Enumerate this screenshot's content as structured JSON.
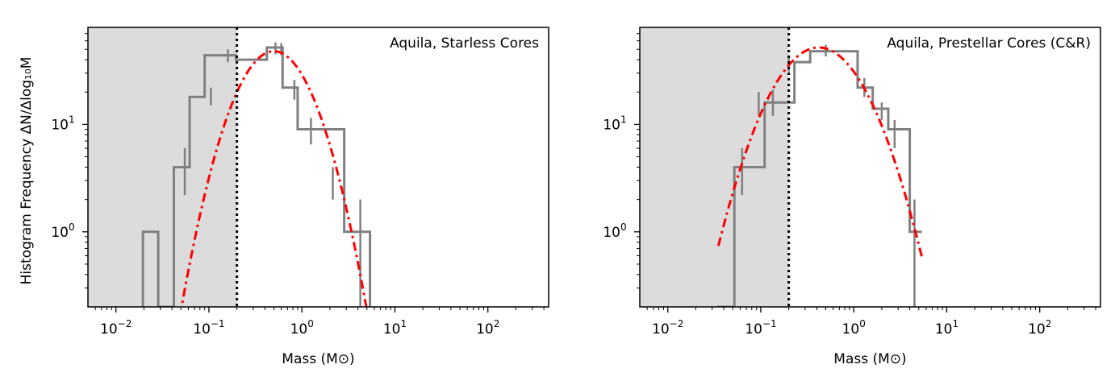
{
  "figure": {
    "ylabel": "Histogram Frequency ΔN/Δlog₁₀M"
  },
  "chart_data": [
    {
      "type": "histogram",
      "title": "",
      "annotation": "Aquila, Starless Cores",
      "xlabel": "Mass (M⊙)",
      "ylabel": "Histogram Frequency ΔN/Δlog₁₀M",
      "xscale": "log",
      "yscale": "log",
      "xlim": [
        0.005,
        450
      ],
      "ylim": [
        0.2,
        80
      ],
      "xticks": [
        0.01,
        0.1,
        1,
        10,
        100
      ],
      "xtick_labels": [
        {
          "base": "10",
          "exp": "−2"
        },
        {
          "base": "10",
          "exp": "−1"
        },
        {
          "base": "10",
          "exp": "0"
        },
        {
          "base": "10",
          "exp": "1"
        },
        {
          "base": "10",
          "exp": "2"
        }
      ],
      "yticks": [
        1,
        10
      ],
      "ytick_labels": [
        {
          "base": "10",
          "exp": "0"
        },
        {
          "base": "10",
          "exp": "1"
        }
      ],
      "completeness_limit": 0.2,
      "shaded_region": [
        0.005,
        0.2
      ],
      "histogram": {
        "color": "#808080",
        "bins": [
          {
            "x0": 0.0195,
            "x1": 0.0285,
            "count": 1.0,
            "err": [
              0.2,
              1.0
            ]
          },
          {
            "x0": 0.0285,
            "x1": 0.042,
            "count": 0.2,
            "err": null
          },
          {
            "x0": 0.042,
            "x1": 0.062,
            "count": 4.0,
            "err": [
              2.0,
              6.0
            ]
          },
          {
            "x0": 0.062,
            "x1": 0.09,
            "count": 18.0,
            "err": [
              13.5,
              22.5
            ]
          },
          {
            "x0": 0.09,
            "x1": 0.132,
            "count": 44.0,
            "err": [
              37.0,
              51.0
            ]
          },
          {
            "x0": 0.132,
            "x1": 0.195,
            "count": 42.0,
            "err": [
              35.0,
              49.0
            ]
          },
          {
            "x0": 0.195,
            "x1": 0.285,
            "count": 38.0,
            "err": [
              32.0,
              44.0
            ]
          },
          {
            "x0": 0.285,
            "x1": 0.42,
            "count": 44.0,
            "err": [
              37.5,
              50.5
            ]
          },
          {
            "x0": 0.42,
            "x1": 0.62,
            "count": 52.0,
            "err": [
              45.0,
              59.0
            ]
          },
          {
            "x0": 0.62,
            "x1": 0.9,
            "count": 22.0,
            "err": [
              17.0,
              27.0
            ]
          },
          {
            "x0": 0.9,
            "x1": 1.32,
            "count": 9.0,
            "err": [
              6.0,
              12.0
            ]
          },
          {
            "x0": 1.32,
            "x1": 1.95,
            "count": 3.0,
            "err": [
              1.3,
              4.7
            ]
          },
          {
            "x0": 1.95,
            "x1": 2.85,
            "count": 1.0,
            "err": [
              0.2,
              2.0
            ]
          },
          {
            "x0": 2.85,
            "x1": 5.4,
            "count": 1.0,
            "err": [
              0.2,
              2.0
            ]
          }
        ],
        "outline_x": [
          0.0195,
          0.0285,
          0.042,
          0.062,
          0.09,
          0.195,
          0.42,
          0.62,
          0.9,
          1.55,
          2.85,
          4.05,
          5.4
        ],
        "outline_y": [
          1.0,
          0.2,
          4.0,
          18.0,
          44.0,
          40.0,
          52.0,
          22.0,
          9.0,
          9.0,
          1.0,
          1.0
        ],
        "errorbars": [
          {
            "x": 0.0285,
            "lo": 0.2,
            "hi": 1.0
          },
          {
            "x": 0.055,
            "lo": 2.2,
            "hi": 6.0
          },
          {
            "x": 0.105,
            "lo": 15.0,
            "hi": 22.0
          },
          {
            "x": 0.16,
            "lo": 38.0,
            "hi": 50.0
          },
          {
            "x": 0.52,
            "lo": 45.0,
            "hi": 58.0
          },
          {
            "x": 0.6,
            "lo": 44.0,
            "hi": 57.0
          },
          {
            "x": 0.83,
            "lo": 17.0,
            "hi": 26.0
          },
          {
            "x": 1.25,
            "lo": 6.5,
            "hi": 11.5
          },
          {
            "x": 2.15,
            "lo": 2.0,
            "hi": 4.0
          },
          {
            "x": 4.25,
            "lo": 0.2,
            "hi": 2.0
          }
        ]
      },
      "fit": {
        "style": "dash-dot",
        "color": "#ff0000",
        "peak_mass": 0.5,
        "peak_value": 48,
        "sigma_log10": 0.3,
        "x_range": [
          0.045,
          5.6
        ]
      }
    },
    {
      "type": "histogram",
      "title": "",
      "annotation": "Aquila, Prestellar Cores (C&R)",
      "xlabel": "Mass (M⊙)",
      "ylabel": "",
      "xscale": "log",
      "yscale": "log",
      "xlim": [
        0.005,
        450
      ],
      "ylim": [
        0.2,
        80
      ],
      "xticks": [
        0.01,
        0.1,
        1,
        10,
        100
      ],
      "xtick_labels": [
        {
          "base": "10",
          "exp": "−2"
        },
        {
          "base": "10",
          "exp": "−1"
        },
        {
          "base": "10",
          "exp": "0"
        },
        {
          "base": "10",
          "exp": "1"
        },
        {
          "base": "10",
          "exp": "2"
        }
      ],
      "yticks": [
        1,
        10
      ],
      "ytick_labels": [
        {
          "base": "10",
          "exp": "0"
        },
        {
          "base": "10",
          "exp": "1"
        }
      ],
      "completeness_limit": 0.2,
      "shaded_region": [
        0.005,
        0.2
      ],
      "histogram": {
        "color": "#808080",
        "outline_x": [
          0.035,
          0.052,
          0.075,
          0.11,
          0.16,
          0.23,
          0.34,
          0.5,
          0.75,
          1.1,
          1.6,
          2.35,
          4.0,
          5.4
        ],
        "outline_y": [
          0.2,
          4.0,
          4.0,
          16.0,
          16.0,
          38.0,
          48.0,
          48.0,
          48.0,
          22.0,
          14.0,
          9.0,
          1.0,
          1.0
        ],
        "errorbars": [
          {
            "x": 0.063,
            "lo": 2.2,
            "hi": 6.0
          },
          {
            "x": 0.095,
            "lo": 12.0,
            "hi": 20.0
          },
          {
            "x": 0.135,
            "lo": 12.0,
            "hi": 21.0
          },
          {
            "x": 0.2,
            "lo": 31.0,
            "hi": 44.0
          },
          {
            "x": 0.5,
            "lo": 43.0,
            "hi": 55.0
          },
          {
            "x": 1.3,
            "lo": 18.0,
            "hi": 27.0
          },
          {
            "x": 2.0,
            "lo": 11.0,
            "hi": 16.0
          },
          {
            "x": 2.75,
            "lo": 6.0,
            "hi": 11.0
          },
          {
            "x": 4.5,
            "lo": 0.2,
            "hi": 2.0
          }
        ]
      },
      "fit": {
        "style": "dash-dot",
        "color": "#ff0000",
        "peak_mass": 0.42,
        "peak_value": 52,
        "sigma_log10": 0.37,
        "x_range": [
          0.035,
          5.4
        ]
      }
    }
  ]
}
